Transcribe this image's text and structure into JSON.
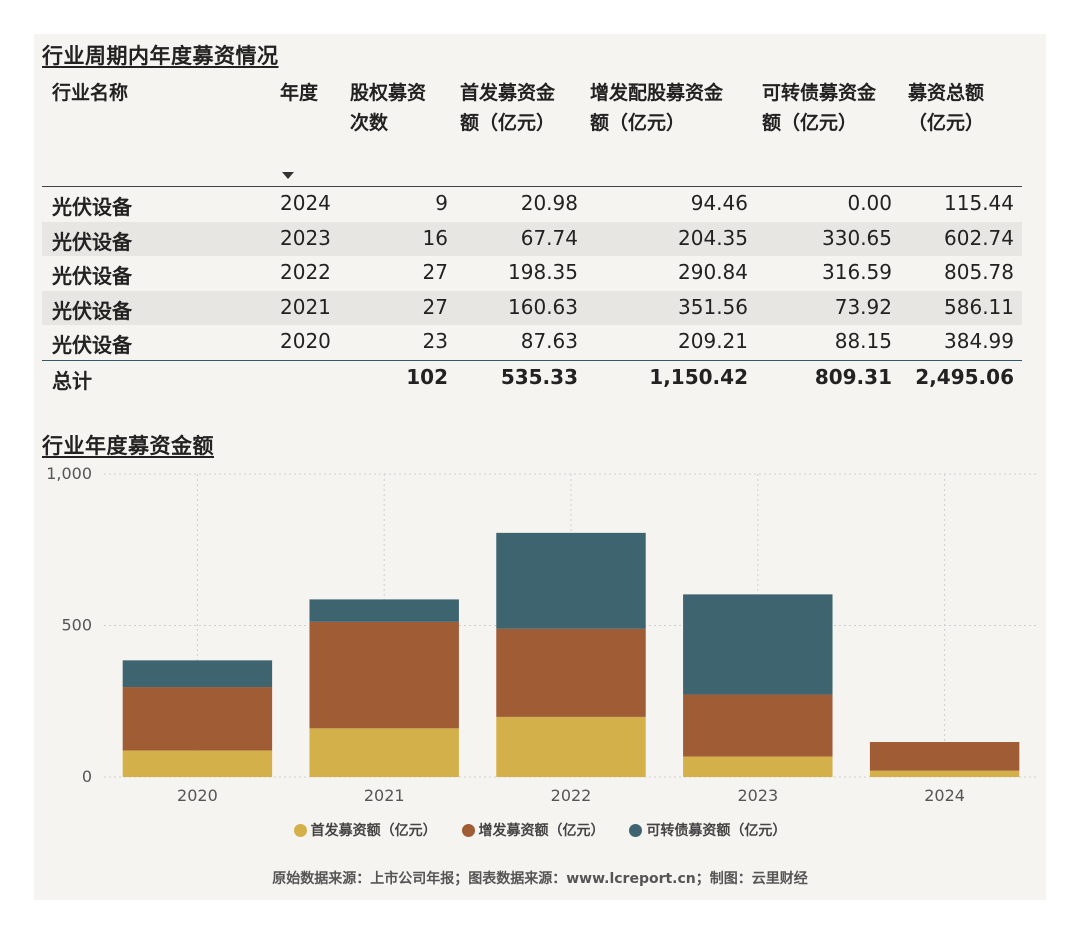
{
  "table": {
    "title": "行业周期内年度募资情况",
    "headers": [
      "行业名称",
      "年度",
      "股权募资\n次数",
      "首发募资金\n额（亿元）",
      "增发配股募资金\n额（亿元）",
      "可转债募资金\n额（亿元）",
      "募资总额\n（亿元）"
    ],
    "rows": [
      [
        "光伏设备",
        "2024",
        "9",
        "20.98",
        "94.46",
        "0.00",
        "115.44"
      ],
      [
        "光伏设备",
        "2023",
        "16",
        "67.74",
        "204.35",
        "330.65",
        "602.74"
      ],
      [
        "光伏设备",
        "2022",
        "27",
        "198.35",
        "290.84",
        "316.59",
        "805.78"
      ],
      [
        "光伏设备",
        "2021",
        "27",
        "160.63",
        "351.56",
        "73.92",
        "586.11"
      ],
      [
        "光伏设备",
        "2020",
        "23",
        "87.63",
        "209.21",
        "88.15",
        "384.99"
      ]
    ],
    "total": [
      "总计",
      "",
      "102",
      "535.33",
      "1,150.42",
      "809.31",
      "2,495.06"
    ]
  },
  "chart_data": {
    "type": "bar",
    "stacked": true,
    "title": "行业年度募资金额",
    "categories": [
      "2020",
      "2021",
      "2022",
      "2023",
      "2024"
    ],
    "series": [
      {
        "name": "首发募资额（亿元）",
        "values": [
          87.63,
          160.63,
          198.35,
          67.74,
          20.98
        ],
        "color": "#d4b04a"
      },
      {
        "name": "增发募资额（亿元）",
        "values": [
          209.21,
          351.56,
          290.84,
          204.35,
          94.46
        ],
        "color": "#a05c35"
      },
      {
        "name": "可转债募资额（亿元）",
        "values": [
          88.15,
          73.92,
          316.59,
          330.65,
          0.0
        ],
        "color": "#3e6470"
      }
    ],
    "ylim": [
      0,
      1000
    ],
    "yticks": [
      "0",
      "500",
      "1,000"
    ],
    "grid": true,
    "legend": "bottom"
  },
  "source": "原始数据来源：上市公司年报；图表数据来源：www.lcreport.cn；制图：云里财经"
}
